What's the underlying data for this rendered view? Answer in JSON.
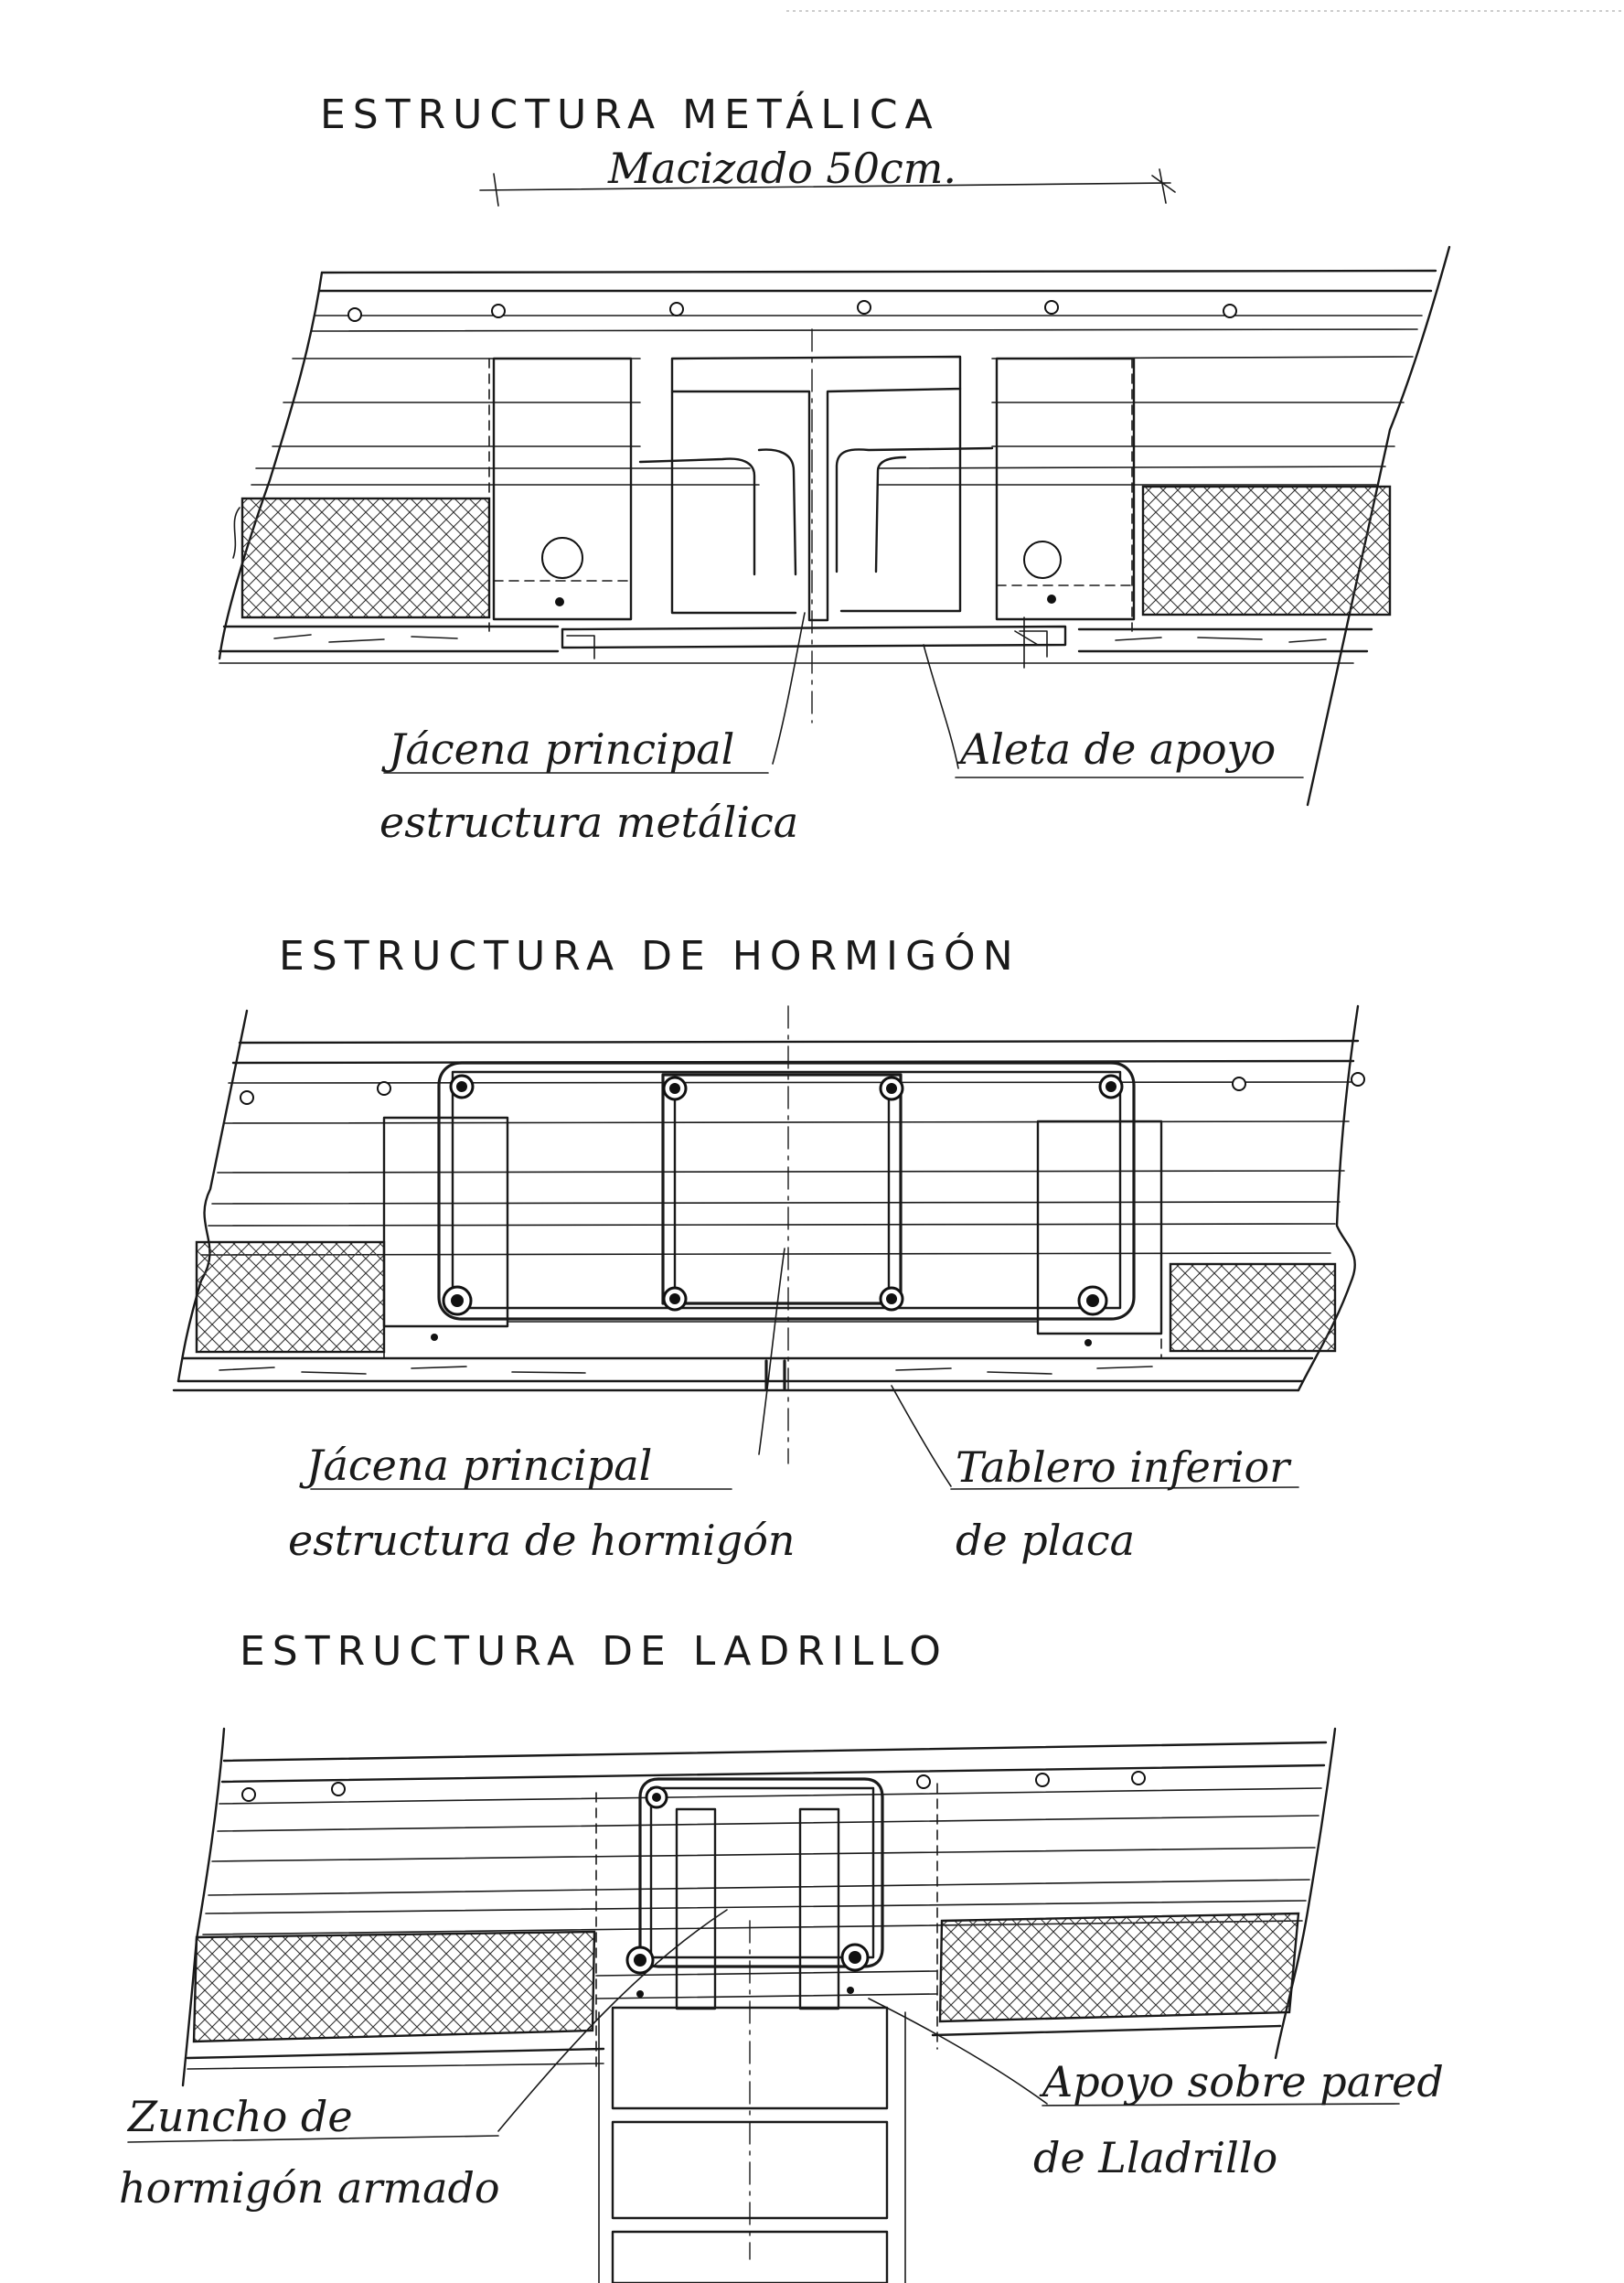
{
  "sections": [
    {
      "title": "ESTRUCTURA METÁLICA",
      "dimension_label": "Macizado 50cm.",
      "labels": [
        {
          "line1": "Jácena principal",
          "line2": "estructura metálica"
        },
        {
          "line1": "Aleta de apoyo",
          "line2": ""
        }
      ]
    },
    {
      "title": "ESTRUCTURA DE HORMIGÓN",
      "labels": [
        {
          "line1": "Jácena principal",
          "line2": "estructura de hormigón"
        },
        {
          "line1": "Tablero inferior",
          "line2": "de placa"
        }
      ]
    },
    {
      "title": "ESTRUCTURA DE LADRILLO",
      "labels": [
        {
          "line1": "Zuncho de",
          "line2": "hormigón armado"
        },
        {
          "line1": "Apoyo sobre pared",
          "line2": "de Lladrillo"
        }
      ]
    }
  ],
  "colors": {
    "ink": "#1a1a1a",
    "paper": "#ffffff"
  }
}
